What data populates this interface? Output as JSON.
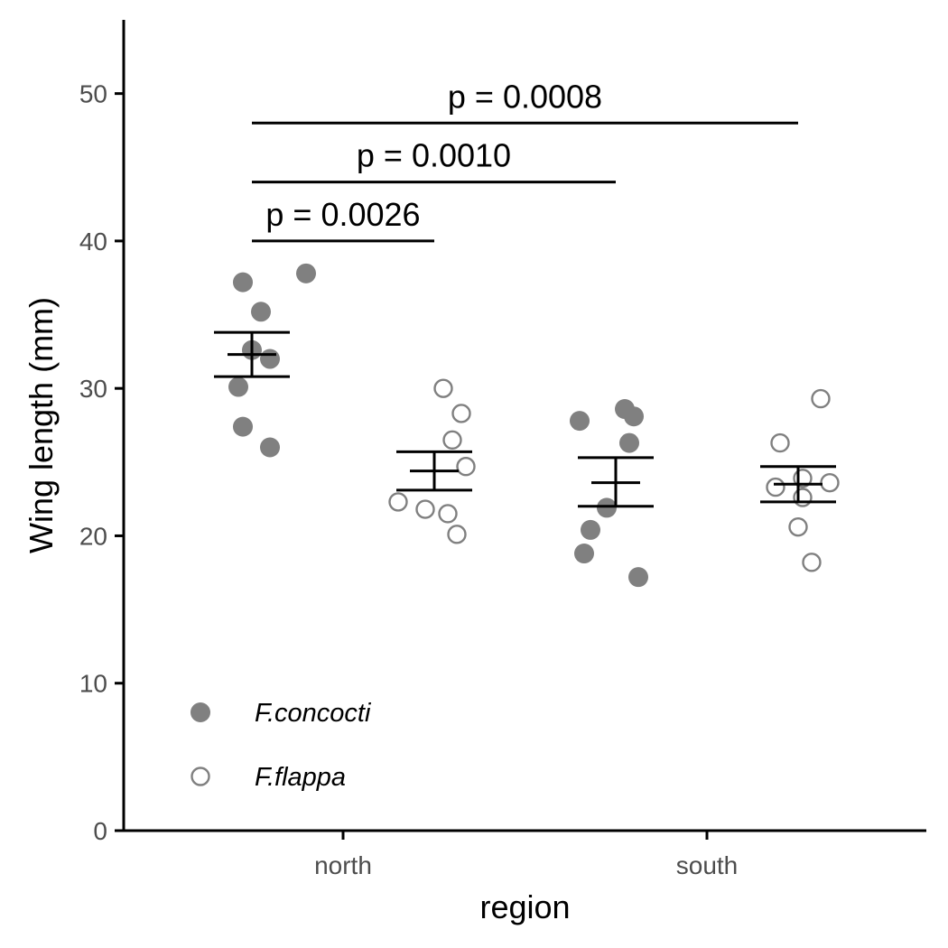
{
  "chart_data": {
    "type": "scatter",
    "xlabel": "region",
    "ylabel": "Wing length (mm)",
    "ylim": [
      0,
      55
    ],
    "yticks": [
      0,
      10,
      20,
      30,
      40,
      50
    ],
    "categories": [
      "north",
      "south"
    ],
    "grid": false,
    "legend_position": "bottom-left",
    "colors": {
      "points": "#808080",
      "lines": "#000000",
      "axis": "#000000"
    },
    "series": [
      {
        "name": "F.concocti",
        "marker": "filled-circle",
        "groups": [
          {
            "category": "north",
            "points": [
              37.8,
              37.2,
              35.2,
              32.6,
              32.0,
              30.1,
              27.4,
              26.0
            ],
            "mean": 32.3,
            "se_low": 30.8,
            "se_high": 33.8
          },
          {
            "category": "south",
            "points": [
              28.6,
              28.1,
              27.8,
              26.3,
              21.9,
              20.4,
              18.8,
              17.2
            ],
            "mean": 23.6,
            "se_low": 22.0,
            "se_high": 25.3
          }
        ]
      },
      {
        "name": "F.flappa",
        "marker": "open-circle",
        "groups": [
          {
            "category": "north",
            "points": [
              30.0,
              28.3,
              26.5,
              24.7,
              22.3,
              21.8,
              21.5,
              20.1
            ],
            "mean": 24.4,
            "se_low": 23.1,
            "se_high": 25.7
          },
          {
            "category": "south",
            "points": [
              29.3,
              26.3,
              23.9,
              23.6,
              23.3,
              22.6,
              20.6,
              18.2
            ],
            "mean": 23.5,
            "se_low": 22.3,
            "se_high": 24.7
          }
        ]
      }
    ],
    "comparisons": [
      {
        "label": "p = 0.0026",
        "y": 40,
        "from": "north / F.concocti",
        "to": "north / F.flappa"
      },
      {
        "label": "p = 0.0010",
        "y": 44,
        "from": "north / F.concocti",
        "to": "south / F.concocti"
      },
      {
        "label": "p = 0.0008",
        "y": 48,
        "from": "north / F.concocti",
        "to": "south / F.flappa"
      }
    ]
  }
}
